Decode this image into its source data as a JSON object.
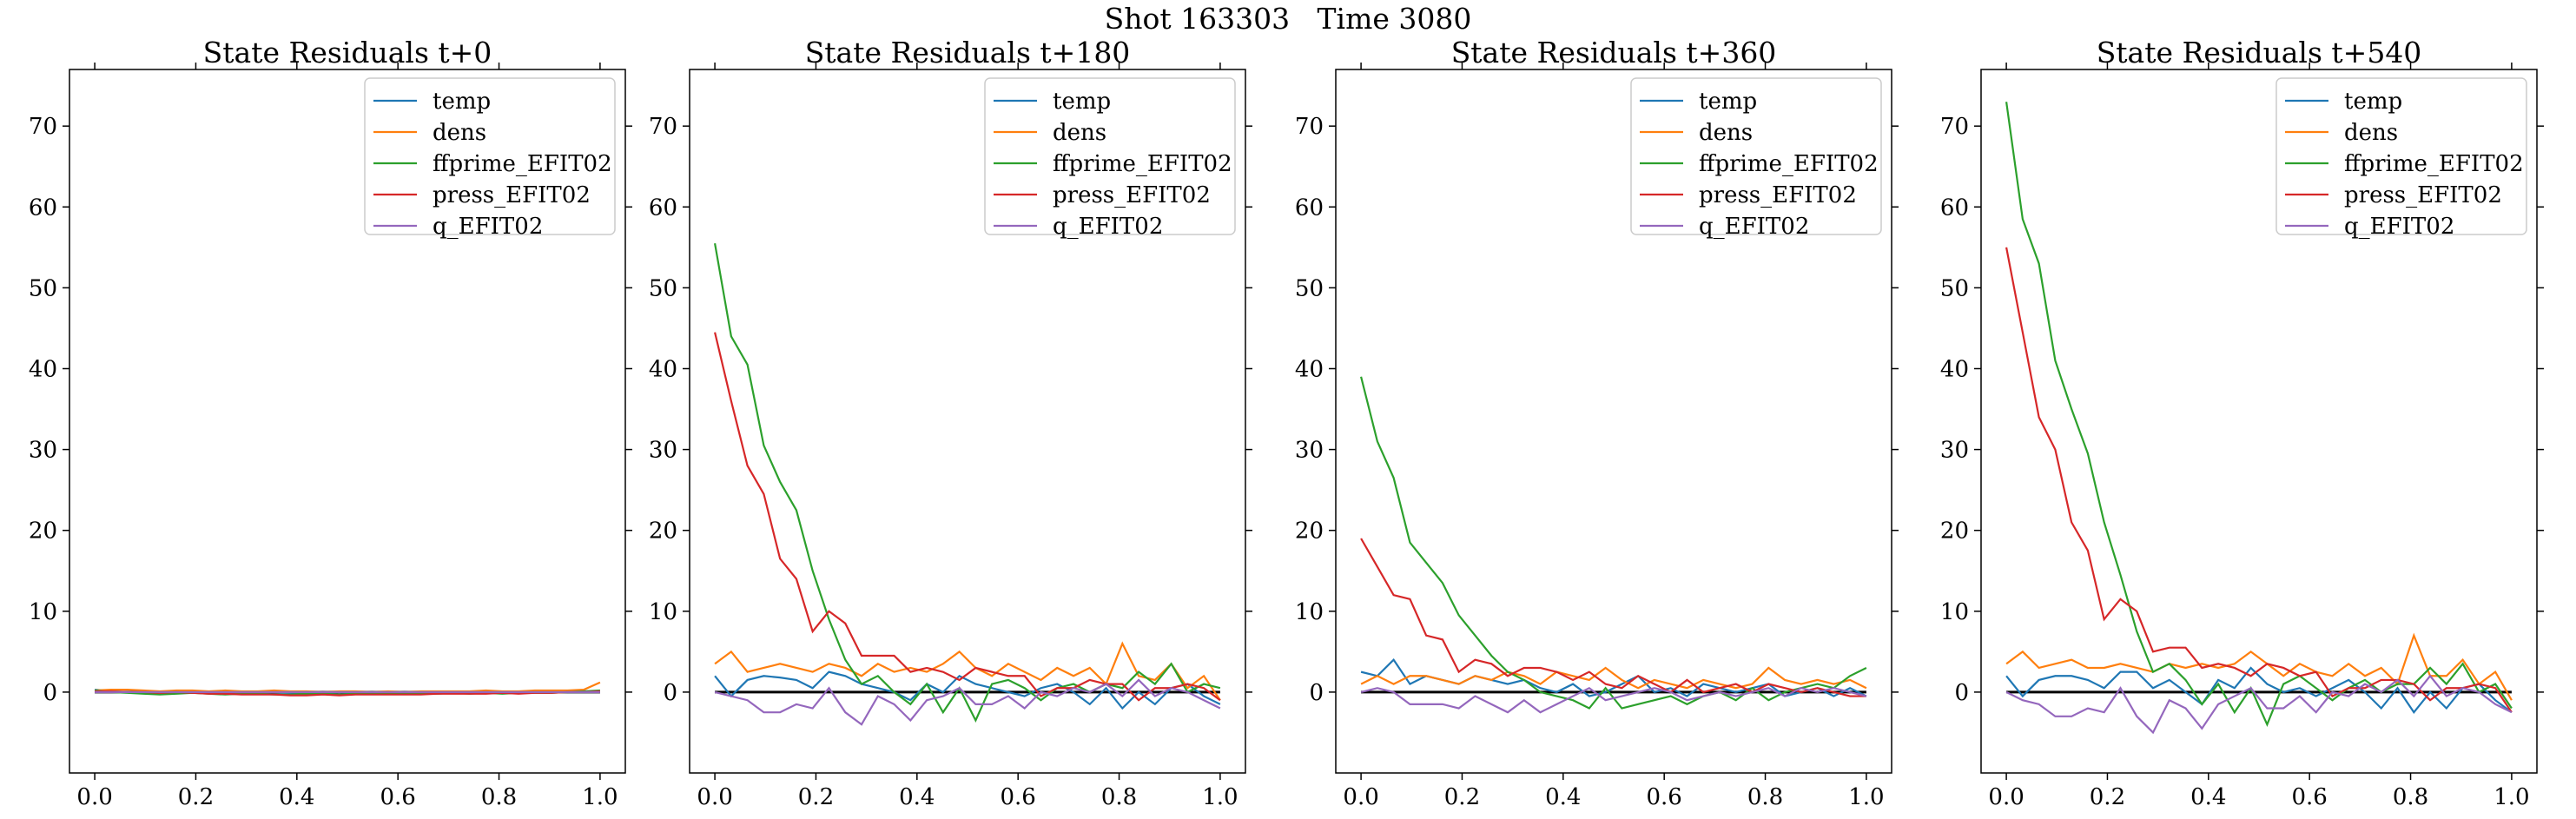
{
  "figure": {
    "suptitle": "Shot 163303   Time 3080",
    "series_colors": {
      "temp": "#1f77b4",
      "dens": "#ff7f0e",
      "ffprime_EFIT02": "#2ca02c",
      "press_EFIT02": "#d62728",
      "q_EFIT02": "#9467bd"
    },
    "zero_line_color": "#000000"
  },
  "chart_data": [
    {
      "type": "line",
      "title": "State Residuals t+0",
      "xlabel": "",
      "ylabel": "",
      "xlim": [
        -0.05,
        1.05
      ],
      "ylim": [
        -10,
        77
      ],
      "xticks": [
        "0.0",
        "0.2",
        "0.4",
        "0.6",
        "0.8",
        "1.0"
      ],
      "yticks": [
        "0",
        "10",
        "20",
        "30",
        "40",
        "50",
        "60",
        "70"
      ],
      "legend": "top-right",
      "x": [
        0.0,
        0.0323,
        0.0645,
        0.0968,
        0.129,
        0.1613,
        0.1935,
        0.2258,
        0.2581,
        0.2903,
        0.3226,
        0.3548,
        0.3871,
        0.4194,
        0.4516,
        0.4839,
        0.5161,
        0.5484,
        0.5806,
        0.6129,
        0.6452,
        0.6774,
        0.7097,
        0.7419,
        0.7742,
        0.8065,
        0.8387,
        0.871,
        0.9032,
        0.9355,
        0.9677,
        1.0
      ],
      "series": [
        {
          "name": "temp",
          "values": [
            0.3,
            0.1,
            0.0,
            -0.1,
            0.0,
            0.1,
            0.0,
            -0.1,
            0.0,
            0.0,
            -0.1,
            0.0,
            -0.1,
            -0.2,
            -0.1,
            0.0,
            -0.1,
            -0.1,
            0.0,
            -0.1,
            0.0,
            0.0,
            -0.1,
            0.0,
            0.0,
            0.0,
            0.0,
            0.0,
            0.1,
            0.0,
            0.1,
            0.1
          ]
        },
        {
          "name": "dens",
          "values": [
            0.2,
            0.3,
            0.3,
            0.2,
            0.1,
            0.2,
            0.2,
            0.1,
            0.2,
            0.1,
            0.1,
            0.2,
            0.1,
            0.1,
            0.0,
            0.1,
            0.1,
            0.0,
            0.1,
            0.0,
            0.1,
            0.1,
            0.1,
            0.1,
            0.2,
            0.1,
            0.1,
            0.2,
            0.2,
            0.2,
            0.3,
            1.2
          ]
        },
        {
          "name": "ffprime_EFIT02",
          "values": [
            0.2,
            0.0,
            -0.1,
            -0.2,
            -0.3,
            -0.2,
            -0.1,
            -0.2,
            -0.3,
            -0.2,
            -0.2,
            -0.3,
            -0.3,
            -0.2,
            -0.2,
            -0.3,
            -0.2,
            -0.2,
            -0.2,
            -0.2,
            -0.2,
            -0.2,
            -0.1,
            -0.2,
            -0.1,
            -0.2,
            -0.1,
            -0.1,
            -0.1,
            0.0,
            0.1,
            0.2
          ]
        },
        {
          "name": "press_EFIT02",
          "values": [
            0.1,
            0.1,
            0.0,
            0.0,
            -0.1,
            0.0,
            -0.1,
            -0.2,
            -0.2,
            -0.3,
            -0.3,
            -0.3,
            -0.4,
            -0.4,
            -0.3,
            -0.4,
            -0.3,
            -0.3,
            -0.3,
            -0.3,
            -0.3,
            -0.2,
            -0.2,
            -0.2,
            -0.2,
            -0.1,
            -0.2,
            -0.1,
            -0.1,
            0.0,
            0.0,
            0.1
          ]
        },
        {
          "name": "q_EFIT02",
          "values": [
            0.0,
            0.0,
            0.0,
            0.0,
            0.0,
            0.0,
            0.0,
            0.0,
            0.0,
            0.0,
            0.0,
            0.0,
            0.0,
            0.0,
            0.0,
            0.0,
            0.0,
            0.0,
            0.0,
            0.0,
            0.0,
            0.0,
            0.0,
            0.0,
            0.0,
            0.0,
            0.0,
            0.0,
            0.0,
            0.0,
            0.0,
            0.0
          ]
        }
      ]
    },
    {
      "type": "line",
      "title": "State Residuals t+180",
      "xlabel": "",
      "ylabel": "",
      "xlim": [
        -0.05,
        1.05
      ],
      "ylim": [
        -10,
        77
      ],
      "xticks": [
        "0.0",
        "0.2",
        "0.4",
        "0.6",
        "0.8",
        "1.0"
      ],
      "yticks": [
        "0",
        "10",
        "20",
        "30",
        "40",
        "50",
        "60",
        "70"
      ],
      "legend": "top-right",
      "x": [
        0.0,
        0.0323,
        0.0645,
        0.0968,
        0.129,
        0.1613,
        0.1935,
        0.2258,
        0.2581,
        0.2903,
        0.3226,
        0.3548,
        0.3871,
        0.4194,
        0.4516,
        0.4839,
        0.5161,
        0.5484,
        0.5806,
        0.6129,
        0.6452,
        0.6774,
        0.7097,
        0.7419,
        0.7742,
        0.8065,
        0.8387,
        0.871,
        0.9032,
        0.9355,
        0.9677,
        1.0
      ],
      "series": [
        {
          "name": "temp",
          "values": [
            2.0,
            -0.5,
            1.5,
            2.0,
            1.8,
            1.5,
            0.5,
            2.5,
            2.0,
            1.0,
            0.5,
            0.0,
            -1.0,
            1.0,
            0.0,
            2.0,
            1.0,
            0.5,
            0.0,
            -0.5,
            0.5,
            1.0,
            0.0,
            -1.5,
            0.5,
            -2.0,
            0.0,
            -1.5,
            0.5,
            1.0,
            -0.5,
            -1.5
          ]
        },
        {
          "name": "dens",
          "values": [
            3.5,
            5.0,
            2.5,
            3.0,
            3.5,
            3.0,
            2.5,
            3.5,
            3.0,
            2.0,
            3.5,
            2.5,
            3.0,
            2.5,
            3.5,
            5.0,
            3.0,
            2.0,
            3.5,
            2.5,
            1.5,
            3.0,
            2.0,
            3.0,
            1.0,
            6.0,
            2.0,
            1.5,
            3.5,
            0.5,
            2.0,
            -1.0
          ]
        },
        {
          "name": "ffprime_EFIT02",
          "values": [
            55.5,
            44.0,
            40.5,
            30.5,
            26.0,
            22.5,
            15.0,
            9.0,
            4.0,
            1.0,
            2.0,
            0.0,
            -1.5,
            1.0,
            -2.5,
            0.5,
            -3.5,
            1.0,
            1.5,
            0.5,
            -1.0,
            0.5,
            1.0,
            0.0,
            1.0,
            0.5,
            2.5,
            1.0,
            3.5,
            0.0,
            1.0,
            0.5
          ]
        },
        {
          "name": "press_EFIT02",
          "values": [
            44.5,
            36.0,
            28.0,
            24.5,
            16.5,
            14.0,
            7.5,
            10.0,
            8.5,
            4.5,
            4.5,
            4.5,
            2.5,
            3.0,
            2.5,
            1.5,
            3.0,
            2.5,
            2.0,
            2.0,
            -0.5,
            0.5,
            0.5,
            1.5,
            1.0,
            1.0,
            -1.0,
            0.5,
            0.5,
            1.0,
            0.5,
            -1.0
          ]
        },
        {
          "name": "q_EFIT02",
          "values": [
            0.0,
            -0.5,
            -1.0,
            -2.5,
            -2.5,
            -1.5,
            -2.0,
            0.5,
            -2.5,
            -4.0,
            -0.5,
            -1.5,
            -3.5,
            -1.0,
            -0.5,
            0.5,
            -1.5,
            -1.5,
            -0.5,
            -2.0,
            0.0,
            -0.5,
            0.5,
            0.0,
            1.0,
            -0.5,
            1.5,
            -0.5,
            0.5,
            0.0,
            -1.0,
            -2.0
          ]
        }
      ]
    },
    {
      "type": "line",
      "title": "State Residuals t+360",
      "xlabel": "",
      "ylabel": "",
      "xlim": [
        -0.05,
        1.05
      ],
      "ylim": [
        -10,
        77
      ],
      "xticks": [
        "0.0",
        "0.2",
        "0.4",
        "0.6",
        "0.8",
        "1.0"
      ],
      "yticks": [
        "0",
        "10",
        "20",
        "30",
        "40",
        "50",
        "60",
        "70"
      ],
      "legend": "top-right",
      "x": [
        0.0,
        0.0323,
        0.0645,
        0.0968,
        0.129,
        0.1613,
        0.1935,
        0.2258,
        0.2581,
        0.2903,
        0.3226,
        0.3548,
        0.3871,
        0.4194,
        0.4516,
        0.4839,
        0.5161,
        0.5484,
        0.5806,
        0.6129,
        0.6452,
        0.6774,
        0.7097,
        0.7419,
        0.7742,
        0.8065,
        0.8387,
        0.871,
        0.9032,
        0.9355,
        0.9677,
        1.0
      ],
      "series": [
        {
          "name": "temp",
          "values": [
            2.5,
            2.0,
            4.0,
            1.0,
            2.0,
            1.5,
            1.0,
            2.0,
            1.5,
            1.0,
            1.5,
            0.5,
            0.0,
            1.0,
            -0.5,
            0.0,
            1.0,
            2.0,
            0.0,
            0.5,
            -0.5,
            1.0,
            0.5,
            0.0,
            0.5,
            1.0,
            -0.5,
            0.0,
            0.5,
            -0.5,
            0.5,
            -0.5
          ]
        },
        {
          "name": "dens",
          "values": [
            1.0,
            2.0,
            1.0,
            2.0,
            2.0,
            1.5,
            1.0,
            2.0,
            1.5,
            2.5,
            2.0,
            1.0,
            2.5,
            2.0,
            1.5,
            3.0,
            1.5,
            0.5,
            1.5,
            1.0,
            0.5,
            1.5,
            1.0,
            0.5,
            1.0,
            3.0,
            1.5,
            1.0,
            1.5,
            1.0,
            1.5,
            0.5
          ]
        },
        {
          "name": "ffprime_EFIT02",
          "values": [
            39.0,
            31.0,
            26.5,
            18.5,
            16.0,
            13.5,
            9.5,
            7.0,
            4.5,
            2.5,
            1.5,
            0.0,
            -0.5,
            -1.0,
            -2.0,
            0.5,
            -2.0,
            -1.5,
            -1.0,
            -0.5,
            -1.5,
            -0.5,
            0.0,
            -1.0,
            0.5,
            -1.0,
            0.0,
            0.5,
            1.0,
            0.5,
            2.0,
            3.0
          ]
        },
        {
          "name": "press_EFIT02",
          "values": [
            19.0,
            15.5,
            12.0,
            11.5,
            7.0,
            6.5,
            2.5,
            4.0,
            3.5,
            2.0,
            3.0,
            3.0,
            2.5,
            1.5,
            2.5,
            1.0,
            0.5,
            2.0,
            1.0,
            0.0,
            1.5,
            0.0,
            0.5,
            1.0,
            0.0,
            1.0,
            0.5,
            0.0,
            0.5,
            0.0,
            -0.5,
            -0.5
          ]
        },
        {
          "name": "q_EFIT02",
          "values": [
            0.0,
            0.5,
            0.0,
            -1.5,
            -1.5,
            -1.5,
            -2.0,
            -0.5,
            -1.5,
            -2.5,
            -1.0,
            -2.5,
            -1.5,
            -0.5,
            0.5,
            -1.0,
            -0.5,
            0.0,
            0.5,
            0.0,
            -1.0,
            -0.5,
            0.0,
            -0.5,
            0.0,
            0.5,
            -0.5,
            0.5,
            0.0,
            0.5,
            0.0,
            -0.5
          ]
        }
      ]
    },
    {
      "type": "line",
      "title": "State Residuals t+540",
      "xlabel": "",
      "ylabel": "",
      "xlim": [
        -0.05,
        1.05
      ],
      "ylim": [
        -10,
        77
      ],
      "xticks": [
        "0.0",
        "0.2",
        "0.4",
        "0.6",
        "0.8",
        "1.0"
      ],
      "yticks": [
        "0",
        "10",
        "20",
        "30",
        "40",
        "50",
        "60",
        "70"
      ],
      "legend": "top-right",
      "x": [
        0.0,
        0.0323,
        0.0645,
        0.0968,
        0.129,
        0.1613,
        0.1935,
        0.2258,
        0.2581,
        0.2903,
        0.3226,
        0.3548,
        0.3871,
        0.4194,
        0.4516,
        0.4839,
        0.5161,
        0.5484,
        0.5806,
        0.6129,
        0.6452,
        0.6774,
        0.7097,
        0.7419,
        0.7742,
        0.8065,
        0.8387,
        0.871,
        0.9032,
        0.9355,
        0.9677,
        1.0
      ],
      "series": [
        {
          "name": "temp",
          "values": [
            2.0,
            -0.5,
            1.5,
            2.0,
            2.0,
            1.5,
            0.5,
            2.5,
            2.5,
            0.5,
            1.5,
            0.0,
            -1.5,
            1.5,
            0.5,
            3.0,
            1.0,
            0.0,
            0.5,
            -0.5,
            0.5,
            1.5,
            0.0,
            -2.0,
            0.5,
            -2.5,
            0.0,
            -2.0,
            0.5,
            1.0,
            -1.0,
            -2.5
          ]
        },
        {
          "name": "dens",
          "values": [
            3.5,
            5.0,
            3.0,
            3.5,
            4.0,
            3.0,
            3.0,
            3.5,
            3.0,
            2.5,
            3.5,
            3.0,
            3.5,
            3.0,
            3.5,
            5.0,
            3.5,
            2.0,
            3.5,
            2.5,
            2.0,
            3.5,
            2.0,
            3.0,
            1.0,
            7.0,
            2.0,
            2.0,
            4.0,
            1.0,
            2.5,
            -1.0
          ]
        },
        {
          "name": "ffprime_EFIT02",
          "values": [
            73.0,
            58.5,
            53.0,
            41.0,
            35.0,
            29.5,
            21.0,
            14.5,
            7.5,
            2.5,
            3.5,
            1.5,
            -1.5,
            1.0,
            -2.5,
            0.5,
            -4.0,
            1.0,
            2.0,
            0.5,
            -1.0,
            0.5,
            1.5,
            0.0,
            1.0,
            1.0,
            3.0,
            1.0,
            3.5,
            0.0,
            1.0,
            -2.0
          ]
        },
        {
          "name": "press_EFIT02",
          "values": [
            55.0,
            44.5,
            34.0,
            30.0,
            21.0,
            17.5,
            9.0,
            11.5,
            10.0,
            5.0,
            5.5,
            5.5,
            3.0,
            3.5,
            3.0,
            2.0,
            3.5,
            3.0,
            2.0,
            2.5,
            -0.5,
            0.5,
            0.5,
            1.5,
            1.5,
            1.0,
            -1.0,
            0.5,
            0.5,
            1.0,
            0.5,
            -2.5
          ]
        },
        {
          "name": "q_EFIT02",
          "values": [
            0.0,
            -1.0,
            -1.5,
            -3.0,
            -3.0,
            -2.0,
            -2.5,
            0.5,
            -3.0,
            -5.0,
            -1.0,
            -2.0,
            -4.5,
            -1.5,
            -0.5,
            0.5,
            -2.0,
            -2.0,
            -0.5,
            -2.5,
            0.0,
            -0.5,
            1.0,
            0.0,
            1.5,
            -0.5,
            2.0,
            -0.5,
            0.5,
            0.0,
            -1.5,
            -2.5
          ]
        }
      ]
    }
  ]
}
